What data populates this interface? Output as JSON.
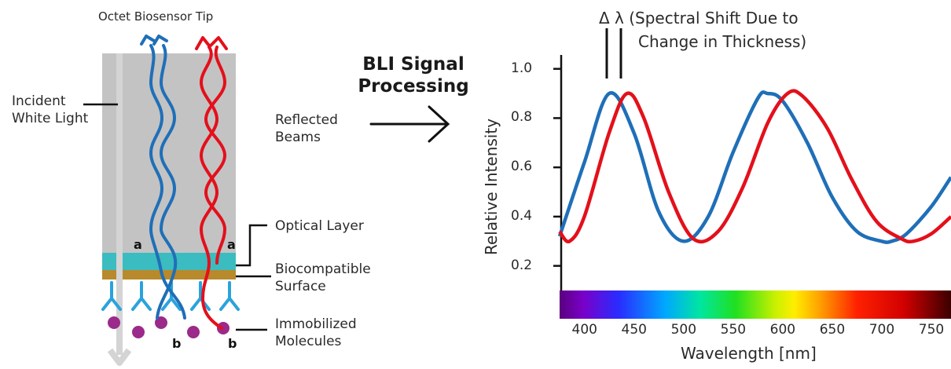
{
  "diagram": {
    "tip_title": "Octet Biosensor Tip",
    "incident_light_line1": "Incident",
    "incident_light_line2": "White Light",
    "reflected_beams_line1": "Reflected",
    "reflected_beams_line2": "Beams",
    "optical_layer": "Optical Layer",
    "biocompatible_line1": "Biocompatible",
    "biocompatible_line2": "Surface",
    "immobilized_line1": "Immobilized",
    "immobilized_line2": "Molecules",
    "label_a": "a",
    "label_b": "b",
    "process_line1": "BLI Signal",
    "process_line2": "Processing",
    "colors": {
      "blue_beam": "#1f6fb8",
      "red_beam": "#e3101b",
      "tip_gray": "#c3c3c3",
      "optical_layer": "#3bbcc0",
      "surface": "#b88a2b",
      "antibody": "#2aa3dc",
      "molecule": "#9b2a8a"
    }
  },
  "chart_data": {
    "type": "line",
    "xlabel": "Wavelength [nm]",
    "ylabel": "Relative Intensity",
    "annotation_line1": "Δ λ (Spectral Shift Due to",
    "annotation_line2": "Change in Thickness)",
    "xlim": [
      375,
      770
    ],
    "ylim": [
      0.1,
      1.05
    ],
    "x_ticks": [
      400,
      450,
      500,
      550,
      600,
      650,
      700,
      750
    ],
    "y_ticks": [
      0.2,
      0.4,
      0.6,
      0.8,
      1.0
    ],
    "y_tick_labels": [
      "0.2",
      "0.4",
      "0.6",
      "0.8",
      "1.0"
    ],
    "spectrum_bar": "visible spectrum 380–770 nm",
    "series": [
      {
        "color": "#1f6fb8",
        "x": [
          375,
          400,
          425,
          450,
          475,
          500,
          525,
          550,
          575,
          585,
          600,
          625,
          650,
          675,
          700,
          710,
          725,
          750,
          770
        ],
        "y": [
          0.32,
          0.62,
          0.9,
          0.74,
          0.42,
          0.3,
          0.4,
          0.66,
          0.88,
          0.9,
          0.87,
          0.7,
          0.48,
          0.34,
          0.3,
          0.3,
          0.33,
          0.44,
          0.56
        ]
      },
      {
        "color": "#e3101b",
        "x": [
          375,
          385,
          400,
          425,
          443,
          460,
          485,
          510,
          535,
          560,
          585,
          605,
          620,
          645,
          670,
          695,
          720,
          732,
          750,
          770
        ],
        "y": [
          0.34,
          0.3,
          0.4,
          0.74,
          0.9,
          0.8,
          0.5,
          0.31,
          0.34,
          0.52,
          0.78,
          0.9,
          0.89,
          0.76,
          0.55,
          0.38,
          0.31,
          0.3,
          0.33,
          0.4
        ]
      }
    ]
  }
}
